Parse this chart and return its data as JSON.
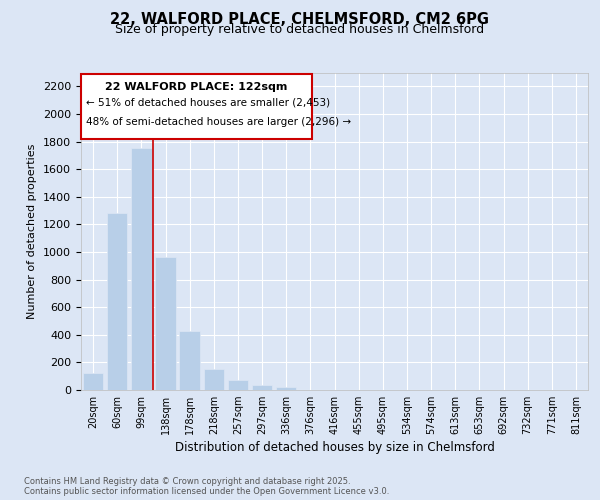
{
  "title_line1": "22, WALFORD PLACE, CHELMSFORD, CM2 6PG",
  "title_line2": "Size of property relative to detached houses in Chelmsford",
  "xlabel": "Distribution of detached houses by size in Chelmsford",
  "ylabel": "Number of detached properties",
  "categories": [
    "20sqm",
    "60sqm",
    "99sqm",
    "138sqm",
    "178sqm",
    "218sqm",
    "257sqm",
    "297sqm",
    "336sqm",
    "376sqm",
    "416sqm",
    "455sqm",
    "495sqm",
    "534sqm",
    "574sqm",
    "613sqm",
    "653sqm",
    "692sqm",
    "732sqm",
    "771sqm",
    "811sqm"
  ],
  "values": [
    120,
    1280,
    1750,
    960,
    430,
    150,
    75,
    35,
    20,
    0,
    0,
    0,
    0,
    0,
    0,
    0,
    0,
    0,
    0,
    0,
    0
  ],
  "bar_color": "#b8cfe8",
  "marker_label": "22 WALFORD PLACE: 122sqm",
  "annotation_line1": "← 51% of detached houses are smaller (2,453)",
  "annotation_line2": "48% of semi-detached houses are larger (2,296) →",
  "red_line_x": 2.5,
  "box_color": "#cc0000",
  "ylim_max": 2300,
  "yticks": [
    0,
    200,
    400,
    600,
    800,
    1000,
    1200,
    1400,
    1600,
    1800,
    2000,
    2200
  ],
  "footer_line1": "Contains HM Land Registry data © Crown copyright and database right 2025.",
  "footer_line2": "Contains public sector information licensed under the Open Government Licence v3.0.",
  "bg_color": "#dce6f5",
  "title_fontsize": 10.5,
  "subtitle_fontsize": 9
}
